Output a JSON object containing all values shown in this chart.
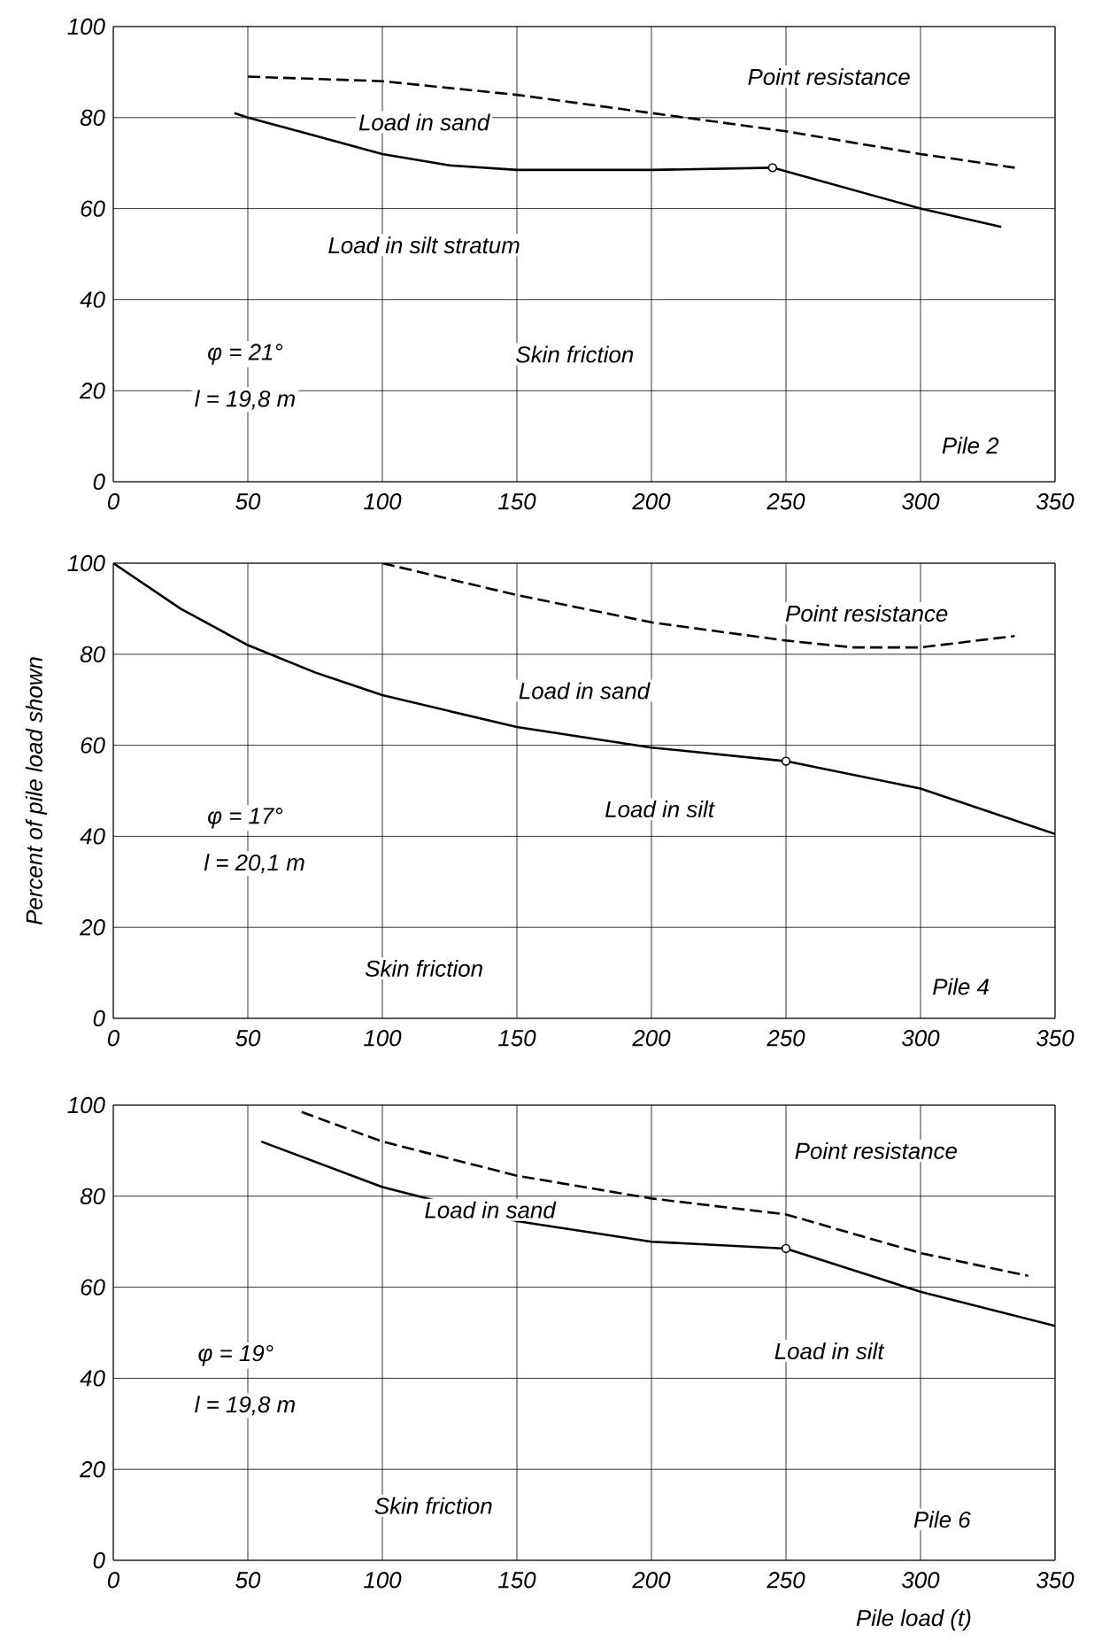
{
  "chart_data": [
    {
      "type": "line",
      "xlim": [
        0,
        350
      ],
      "ylim": [
        0,
        100
      ],
      "xticks": [
        0,
        50,
        100,
        150,
        200,
        250,
        300,
        350
      ],
      "yticks": [
        0,
        20,
        40,
        60,
        80,
        100
      ],
      "grid": true,
      "series": [
        {
          "color": "#000000",
          "line_style": "solid",
          "x": [
            45,
            50,
            75,
            100,
            125,
            150,
            200,
            245,
            300,
            330
          ],
          "values": [
            81,
            80,
            76,
            72,
            69.5,
            68.5,
            68.5,
            69,
            60,
            56
          ]
        },
        {
          "color": "#000000",
          "line_style": "dashed",
          "x": [
            50,
            100,
            150,
            200,
            250,
            300,
            335
          ],
          "values": [
            89,
            88,
            85,
            81,
            77,
            72,
            69
          ]
        },
        {
          "type": "scatter",
          "marker": "circle",
          "color": "#000000",
          "x": [
            245
          ],
          "values": [
            69
          ]
        }
      ],
      "annotations": [
        "Point resistance",
        "Load in sand",
        "Load in silt stratum",
        "Skin friction",
        "φ = 21°",
        "l = 19,8 m",
        "Pile 2"
      ]
    },
    {
      "type": "line",
      "xlim": [
        0,
        350
      ],
      "ylim": [
        0,
        100
      ],
      "xticks": [
        0,
        50,
        100,
        150,
        200,
        250,
        300,
        350
      ],
      "yticks": [
        0,
        20,
        40,
        60,
        80,
        100
      ],
      "grid": true,
      "ylabel": "Percent of pile load shown",
      "series": [
        {
          "color": "#000000",
          "line_style": "solid",
          "x": [
            0,
            25,
            50,
            75,
            100,
            150,
            200,
            250,
            300,
            350
          ],
          "values": [
            100,
            90,
            82,
            76,
            71,
            64,
            59.5,
            56.5,
            50.5,
            40.5
          ]
        },
        {
          "color": "#000000",
          "line_style": "dashed",
          "x": [
            100,
            150,
            200,
            250,
            275,
            300,
            335
          ],
          "values": [
            100,
            93,
            87,
            83,
            81.5,
            81.5,
            84
          ]
        },
        {
          "type": "scatter",
          "marker": "circle",
          "color": "#000000",
          "x": [
            250
          ],
          "values": [
            56.5
          ]
        }
      ],
      "annotations": [
        "Point resistance",
        "Load in sand",
        "Load in silt",
        "Skin friction",
        "φ = 17°",
        "l = 20,1 m",
        "Pile 4"
      ]
    },
    {
      "type": "line",
      "xlim": [
        0,
        350
      ],
      "ylim": [
        0,
        100
      ],
      "xticks": [
        0,
        50,
        100,
        150,
        200,
        250,
        300,
        350
      ],
      "yticks": [
        0,
        20,
        40,
        60,
        80,
        100
      ],
      "grid": true,
      "xlabel": "Pile load (t)",
      "series": [
        {
          "color": "#000000",
          "line_style": "solid",
          "x": [
            55,
            100,
            150,
            200,
            250,
            300,
            350
          ],
          "values": [
            92,
            82,
            74.5,
            70,
            68.5,
            59,
            51.5
          ]
        },
        {
          "color": "#000000",
          "line_style": "dashed",
          "x": [
            70,
            100,
            150,
            200,
            250,
            300,
            340
          ],
          "values": [
            98.5,
            92,
            84.5,
            79.5,
            76,
            67.5,
            62.5
          ]
        },
        {
          "type": "scatter",
          "marker": "circle",
          "color": "#000000",
          "x": [
            250
          ],
          "values": [
            68.5
          ]
        }
      ],
      "annotations": [
        "Point resistance",
        "Load in sand",
        "Load in silt",
        "Skin friction",
        "φ = 19°",
        "l = 19,8 m",
        "Pile 6"
      ]
    }
  ]
}
